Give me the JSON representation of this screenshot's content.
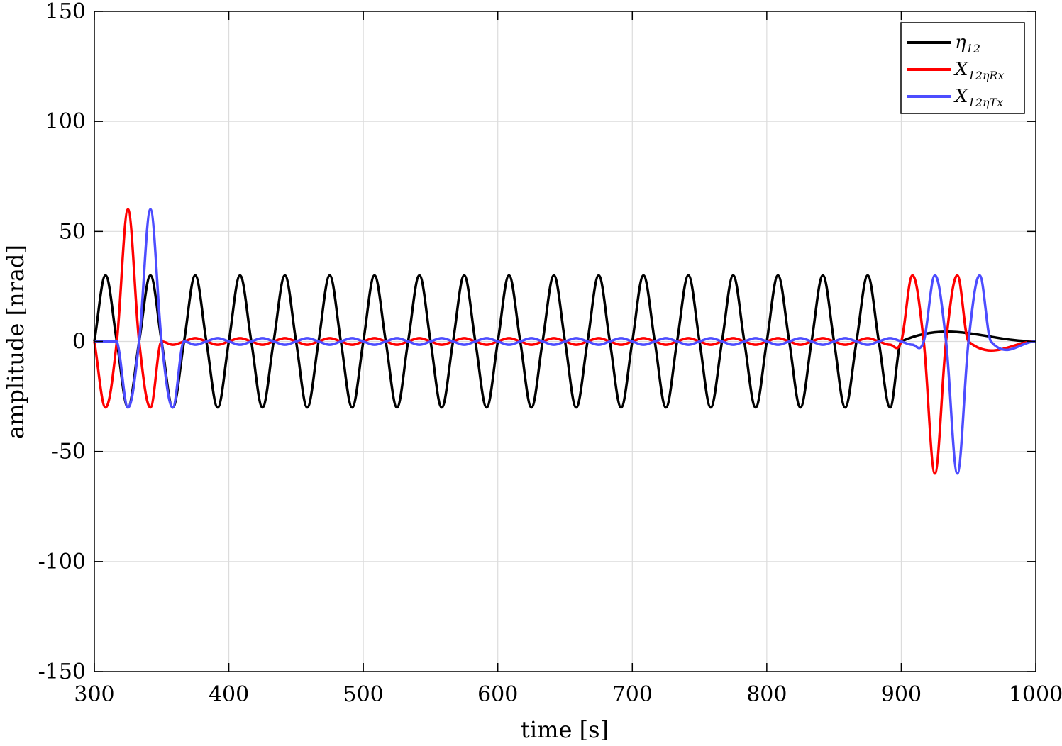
{
  "chart_data": {
    "type": "line",
    "xlabel": "time [s]",
    "ylabel": "amplitude [nrad]",
    "xlim": [
      300,
      1000
    ],
    "ylim": [
      -150,
      150
    ],
    "xticks": [
      300,
      400,
      500,
      600,
      700,
      800,
      900,
      1000
    ],
    "yticks": [
      -150,
      -100,
      -50,
      0,
      50,
      100,
      150
    ],
    "xtick_labels": [
      "300",
      "400",
      "500",
      "600",
      "700",
      "800",
      "900",
      "1000"
    ],
    "ytick_labels": [
      "-150",
      "-100",
      "-50",
      "0",
      "50",
      "100",
      "150"
    ],
    "grid": true,
    "legend_position": "top-right",
    "series": [
      {
        "name": "η12",
        "legend_main": "η",
        "legend_sub": "12",
        "color": "#000000",
        "x": [
          300,
          308.3,
          316.7,
          325,
          333.3,
          341.7,
          350,
          358.3,
          366.7,
          375,
          383.3,
          391.7,
          400,
          408.3,
          416.7,
          425,
          433.3,
          441.7,
          450,
          458.3,
          466.7,
          475,
          483.3,
          491.7,
          500,
          508.3,
          516.7,
          525,
          533.3,
          541.7,
          550,
          558.3,
          566.7,
          575,
          583.3,
          591.7,
          600,
          608.3,
          616.7,
          625,
          633.3,
          641.7,
          650,
          658.3,
          666.7,
          675,
          683.3,
          691.7,
          700,
          708.3,
          716.7,
          725,
          733.3,
          741.7,
          750,
          758.3,
          766.7,
          775,
          783.3,
          791.7,
          800,
          808.3,
          816.7,
          825,
          833.3,
          841.7,
          850,
          858.3,
          866.7,
          875,
          883.3,
          891.7,
          900,
          1000
        ],
        "y": [
          0,
          30,
          0,
          -30,
          0,
          30,
          0,
          -30,
          0,
          30,
          0,
          -30,
          0,
          30,
          0,
          -30,
          0,
          30,
          0,
          -30,
          0,
          30,
          0,
          -30,
          0,
          30,
          0,
          -30,
          0,
          30,
          0,
          -30,
          0,
          30,
          0,
          -30,
          0,
          30,
          0,
          -30,
          0,
          30,
          0,
          -30,
          0,
          30,
          0,
          -30,
          0,
          30,
          0,
          -30,
          0,
          30,
          0,
          -30,
          0,
          30,
          0,
          -30,
          0,
          30,
          0,
          -30,
          0,
          30,
          0,
          -30,
          0,
          30,
          0,
          -30,
          0,
          0
        ]
      },
      {
        "name": "X12ηRx",
        "legend_main": "X",
        "legend_sub": "12ηRx",
        "color": "#ff0000",
        "x": [
          300,
          308.3,
          316.7,
          325,
          333.3,
          341.7,
          350,
          358.3,
          366.7,
          375,
          383.3,
          391.7,
          400,
          408.3,
          416.7,
          425,
          433.3,
          441.7,
          450,
          458.3,
          466.7,
          475,
          483.3,
          491.7,
          500,
          508.3,
          516.7,
          525,
          533.3,
          541.7,
          550,
          558.3,
          566.7,
          575,
          583.3,
          591.7,
          600,
          608.3,
          616.7,
          625,
          633.3,
          641.7,
          650,
          658.3,
          666.7,
          675,
          683.3,
          691.7,
          700,
          708.3,
          716.7,
          725,
          733.3,
          741.7,
          750,
          758.3,
          766.7,
          775,
          783.3,
          791.7,
          800,
          808.3,
          816.7,
          825,
          833.3,
          841.7,
          850,
          858.3,
          866.7,
          875,
          883.3,
          891.7,
          900,
          908.3,
          916.7,
          925,
          933.3,
          941.7,
          950,
          1000
        ],
        "y": [
          0,
          -30,
          0,
          60,
          0,
          -30,
          0,
          -1.5,
          0,
          1.5,
          0,
          -1.5,
          0,
          1.5,
          0,
          -1.5,
          0,
          1.5,
          0,
          -1.5,
          0,
          1.5,
          0,
          -1.5,
          0,
          1.5,
          0,
          -1.5,
          0,
          1.5,
          0,
          -1.5,
          0,
          1.5,
          0,
          -1.5,
          0,
          1.5,
          0,
          -1.5,
          0,
          1.5,
          0,
          -1.5,
          0,
          1.5,
          0,
          -1.5,
          0,
          1.5,
          0,
          -1.5,
          0,
          1.5,
          0,
          -1.5,
          0,
          1.5,
          0,
          -1.5,
          0,
          1.5,
          0,
          -1.5,
          0,
          1.5,
          0,
          -1.5,
          0,
          1.5,
          0,
          -1.5,
          0,
          30,
          0,
          -60,
          0,
          30,
          0,
          0
        ]
      },
      {
        "name": "X12ηTx",
        "legend_main": "X",
        "legend_sub": "12ηTx",
        "color": "#4d4dff",
        "x": [
          300,
          316.7,
          325,
          333.3,
          341.7,
          350,
          358.3,
          366.7,
          375,
          383.3,
          391.7,
          400,
          408.3,
          416.7,
          425,
          433.3,
          441.7,
          450,
          458.3,
          466.7,
          475,
          483.3,
          491.7,
          500,
          508.3,
          516.7,
          525,
          533.3,
          541.7,
          550,
          558.3,
          566.7,
          575,
          583.3,
          591.7,
          600,
          608.3,
          616.7,
          625,
          633.3,
          641.7,
          650,
          658.3,
          666.7,
          675,
          683.3,
          691.7,
          700,
          708.3,
          716.7,
          725,
          733.3,
          741.7,
          750,
          758.3,
          766.7,
          775,
          783.3,
          791.7,
          800,
          808.3,
          816.7,
          825,
          833.3,
          841.7,
          850,
          858.3,
          866.7,
          875,
          883.3,
          891.7,
          900,
          908.3,
          916.7,
          925,
          933.3,
          941.7,
          950,
          958.3,
          966.7,
          1000
        ],
        "y": [
          0,
          0,
          -30,
          0,
          60,
          0,
          -30,
          0,
          -1.5,
          0,
          1.5,
          0,
          -1.5,
          0,
          1.5,
          0,
          -1.5,
          0,
          1.5,
          0,
          -1.5,
          0,
          1.5,
          0,
          -1.5,
          0,
          1.5,
          0,
          -1.5,
          0,
          1.5,
          0,
          -1.5,
          0,
          1.5,
          0,
          -1.5,
          0,
          1.5,
          0,
          -1.5,
          0,
          1.5,
          0,
          -1.5,
          0,
          1.5,
          0,
          -1.5,
          0,
          1.5,
          0,
          -1.5,
          0,
          1.5,
          0,
          -1.5,
          0,
          1.5,
          0,
          -1.5,
          0,
          1.5,
          0,
          -1.5,
          0,
          1.5,
          0,
          -1.5,
          0,
          1.5,
          0,
          -1.5,
          0,
          30,
          0,
          -60,
          0,
          30,
          0,
          0
        ]
      }
    ]
  }
}
